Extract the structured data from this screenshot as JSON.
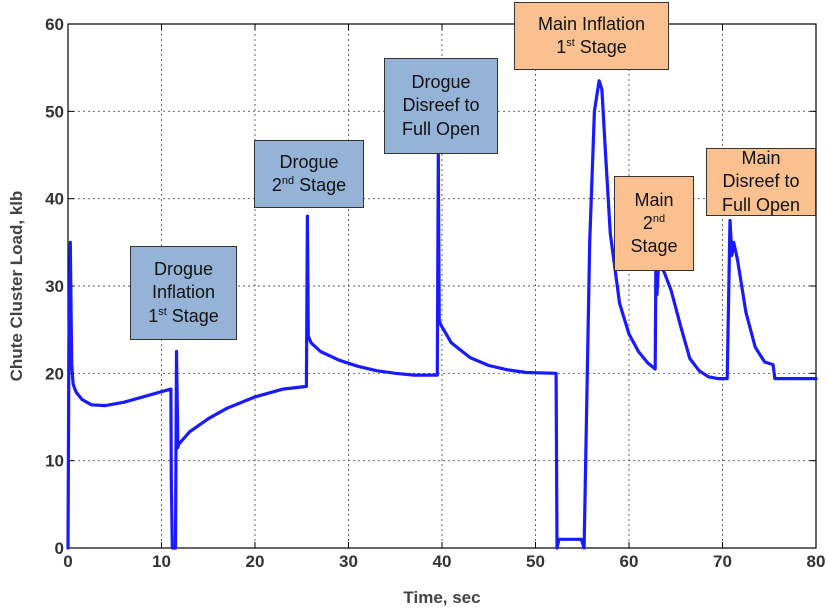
{
  "chart_data": {
    "type": "line",
    "xlabel": "Time, sec",
    "ylabel": "Chute Cluster Load, klb",
    "xlim": [
      0,
      80
    ],
    "ylim": [
      0,
      60
    ],
    "x_ticks": [
      "0",
      "10",
      "20",
      "30",
      "40",
      "50",
      "60",
      "70",
      "80"
    ],
    "y_ticks": [
      "0",
      "10",
      "20",
      "30",
      "40",
      "50",
      "60"
    ],
    "grid": true,
    "line_color": "#1a1aff",
    "series": [
      {
        "x": [
          0,
          0.1,
          0.25,
          0.4,
          0.55,
          0.7,
          0.9,
          1.5,
          2.5,
          4,
          6,
          8,
          10,
          11,
          11.05,
          11.15,
          11.3,
          11.5,
          11.6,
          11.75,
          11.85,
          11.95,
          12.1,
          13,
          15,
          17,
          20,
          23,
          25.5,
          25.6,
          25.7,
          25.8,
          26,
          27,
          29,
          31,
          33,
          35,
          37,
          39.5,
          39.6,
          39.7,
          39.9,
          41,
          43,
          45,
          47,
          49,
          52.2,
          52.3,
          52.5,
          54.9,
          55.2,
          55.8,
          56.3,
          56.8,
          57.1,
          57.5,
          58,
          59,
          60,
          61,
          62,
          62.8,
          62.9,
          63,
          63.15,
          63.4,
          63.8,
          64.5,
          65.5,
          66.5,
          67.5,
          68.5,
          69.5,
          70.5,
          70.8,
          71,
          71.2,
          71.6,
          72.5,
          73.5,
          74.5,
          75.4,
          75.6,
          76,
          78,
          80
        ],
        "y": [
          0,
          23,
          35,
          21,
          18.8,
          18.3,
          17.8,
          17,
          16.4,
          16.3,
          16.7,
          17.3,
          17.9,
          18.2,
          8,
          0,
          0,
          0,
          22.5,
          11.5,
          12,
          12,
          12.2,
          13.3,
          14.8,
          16,
          17.3,
          18.2,
          18.5,
          38,
          24.3,
          24,
          23.5,
          22.5,
          21.5,
          20.8,
          20.3,
          20,
          19.8,
          19.8,
          45,
          26,
          25.5,
          23.5,
          21.8,
          20.9,
          20.4,
          20.1,
          20,
          0,
          1,
          1,
          0,
          35,
          50,
          53.5,
          52.5,
          45,
          36,
          28,
          24.5,
          22.5,
          21.2,
          20.5,
          36.5,
          29,
          32.5,
          32.3,
          31.5,
          29.5,
          25.5,
          21.7,
          20.3,
          19.6,
          19.4,
          19.4,
          37.5,
          33.5,
          35,
          33,
          27,
          23,
          21.3,
          21,
          19.4,
          19.4,
          19.4,
          19.4
        ]
      }
    ],
    "annotations": [
      {
        "lines": [
          "Drogue",
          "Inflation",
          "1|st| Stage"
        ],
        "color": "#95b3d7",
        "target_x": 11.7
      },
      {
        "lines": [
          "Drogue",
          "2|nd| Stage"
        ],
        "color": "#95b3d7",
        "target_x": 25.6
      },
      {
        "lines": [
          "Drogue",
          "Disreef to",
          "Full Open"
        ],
        "color": "#95b3d7",
        "target_x": 39.6
      },
      {
        "lines": [
          "Main Inflation",
          "1|st| Stage"
        ],
        "color": "#fac090",
        "target_x": 57
      },
      {
        "lines": [
          "Main",
          "2|nd|",
          "Stage"
        ],
        "color": "#fac090",
        "target_x": 63
      },
      {
        "lines": [
          "Main",
          "Disreef to",
          "Full Open"
        ],
        "color": "#fac090",
        "target_x": 71
      }
    ]
  }
}
